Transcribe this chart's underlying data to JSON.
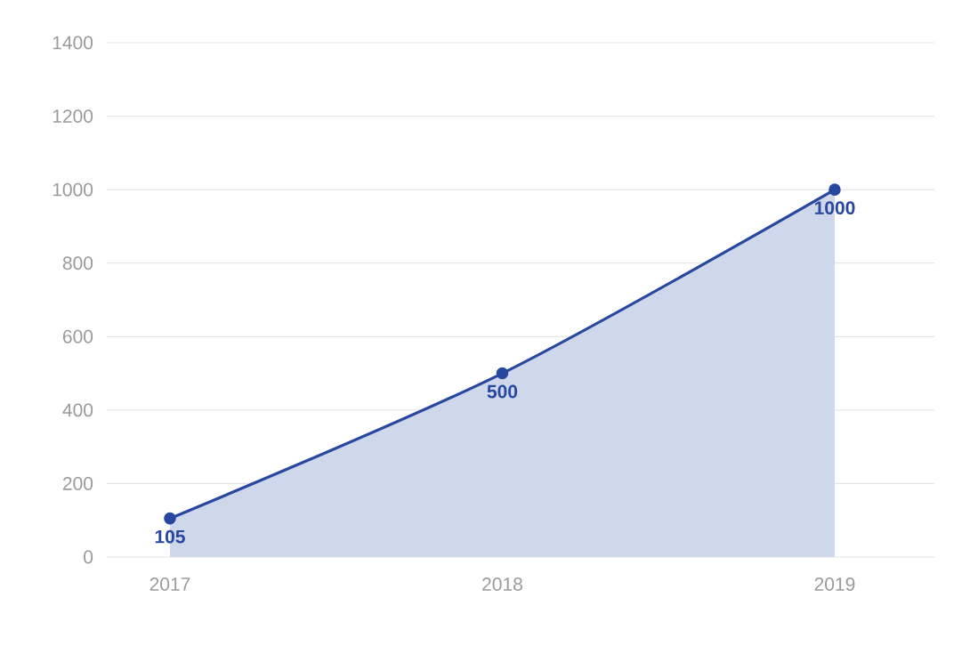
{
  "chart_data": {
    "type": "area",
    "categories": [
      "2017",
      "2018",
      "2019"
    ],
    "series": [
      {
        "color": "#2747a0",
        "values": [
          105,
          500,
          1000
        ]
      }
    ],
    "ylim": [
      0,
      1400
    ],
    "yticks": [
      0,
      200,
      400,
      600,
      800,
      1000,
      1200,
      1400
    ],
    "grid": "y",
    "marker": "circle",
    "data_labels": true
  }
}
